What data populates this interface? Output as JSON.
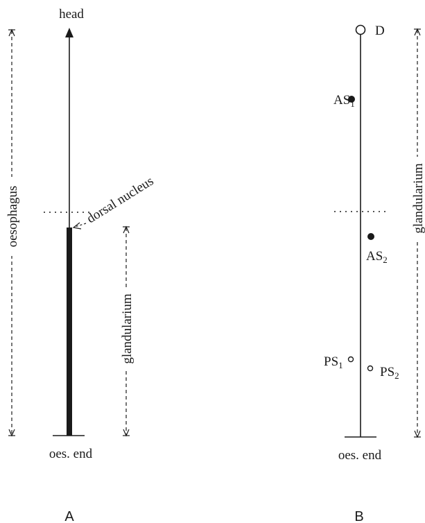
{
  "panels": {
    "A": {
      "caption": "A",
      "top_label": "head",
      "bottom_label": "oes. end",
      "side_label_left": "oesophagus",
      "side_label_right": "glandularium",
      "marker_label": "dorsal nucleus"
    },
    "B": {
      "caption": "B",
      "bottom_label": "oes. end",
      "side_label_right": "glandularium",
      "nuclei": [
        {
          "label": "D",
          "filled": false
        },
        {
          "label": "AS",
          "sub": "1",
          "filled": true
        },
        {
          "label": "AS",
          "sub": "2",
          "filled": true
        },
        {
          "label": "PS",
          "sub": "1",
          "filled": false
        },
        {
          "label": "PS",
          "sub": "2",
          "filled": false
        }
      ]
    }
  },
  "colors": {
    "ink": "#1a1a1a",
    "background": "#ffffff"
  }
}
